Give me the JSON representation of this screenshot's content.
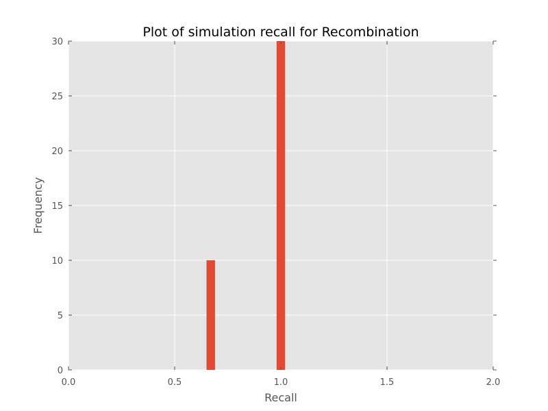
{
  "chart_data": {
    "type": "bar",
    "title": "Plot of simulation recall for Recombination",
    "xlabel": "Recall",
    "ylabel": "Frequency",
    "xlim": [
      0.0,
      2.0
    ],
    "ylim": [
      0,
      30
    ],
    "xticks": [
      "0.0",
      "0.5",
      "1.0",
      "1.5",
      "2.0"
    ],
    "yticks": [
      "0",
      "5",
      "10",
      "15",
      "20",
      "25",
      "30"
    ],
    "grid": true,
    "bars": [
      {
        "x_start": 0.65,
        "x_end": 0.69,
        "value": 10
      },
      {
        "x_start": 0.98,
        "x_end": 1.02,
        "value": 30
      }
    ],
    "colors": {
      "bar": "#E24A33",
      "plot_background": "#E5E5E5",
      "grid": "#FFFFFF"
    }
  }
}
